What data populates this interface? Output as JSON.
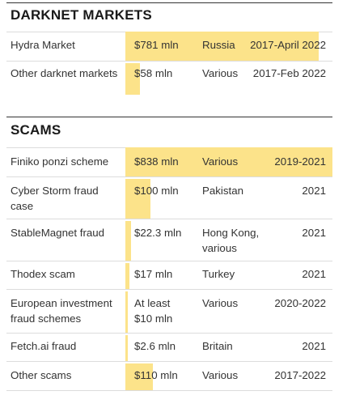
{
  "sections": [
    {
      "title": "DARKNET MARKETS",
      "rows": [
        {
          "name": "Hydra Market",
          "amount": "$781 mln",
          "country": "Russia",
          "period": "2017-April 2022",
          "value_mln": 781
        },
        {
          "name": "Other darknet markets",
          "amount": "$58 mln",
          "country": "Various",
          "period": "2017-Feb 2022",
          "value_mln": 58
        }
      ]
    },
    {
      "title": "SCAMS",
      "rows": [
        {
          "name": "Finiko ponzi scheme",
          "amount": "$838 mln",
          "country": "Various",
          "period": "2019-2021",
          "value_mln": 838
        },
        {
          "name": "Cyber Storm fraud case",
          "amount": "$100 mln",
          "country": "Pakistan",
          "period": "2021",
          "value_mln": 100
        },
        {
          "name": "StableMagnet fraud",
          "amount": "$22.3 mln",
          "country": "Hong Kong, various",
          "period": "2021",
          "value_mln": 22.3
        },
        {
          "name": "Thodex scam",
          "amount": "$17 mln",
          "country": "Turkey",
          "period": "2021",
          "value_mln": 17
        },
        {
          "name": "European investment fraud schemes",
          "amount": "At least $10 mln",
          "country": "Various",
          "period": "2020-2022",
          "value_mln": 10
        },
        {
          "name": "Fetch.ai fraud",
          "amount": "$2.6 mln",
          "country": "Britain",
          "period": "2021",
          "value_mln": 2.6
        },
        {
          "name": "Other scams",
          "amount": "$110 mln",
          "country": "Various",
          "period": "2017-2022",
          "value_mln": 110
        }
      ]
    }
  ],
  "colors": {
    "bar": "#fce38a",
    "text": "#333333",
    "rule": "#333333",
    "row_line": "#dcdcdc"
  }
}
